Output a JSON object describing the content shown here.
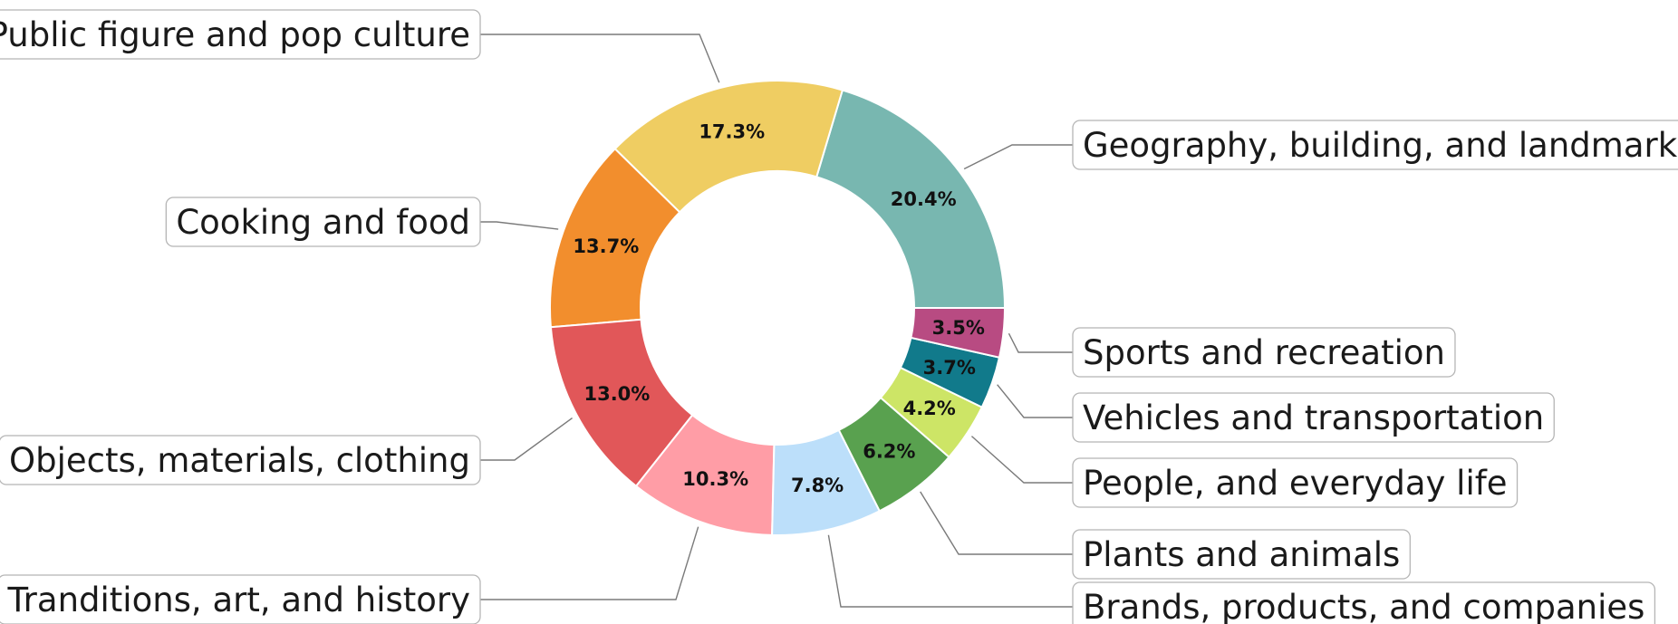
{
  "chart_data": {
    "type": "pie",
    "donut": true,
    "title": "",
    "series": [
      {
        "label": "Geography, building, and landmarks",
        "value": 20.4,
        "display": "20.4%",
        "color": "#78b7b0"
      },
      {
        "label": "Public figure and pop culture",
        "value": 17.3,
        "display": "17.3%",
        "color": "#efcd62"
      },
      {
        "label": "Cooking and food",
        "value": 13.7,
        "display": "13.7%",
        "color": "#f28e2d"
      },
      {
        "label": "Objects, materials, clothing",
        "value": 13.0,
        "display": "13.0%",
        "color": "#e15759"
      },
      {
        "label": "Tranditions, art, and history",
        "value": 10.3,
        "display": "10.3%",
        "color": "#ff9da6"
      },
      {
        "label": "Brands, products, and companies",
        "value": 7.8,
        "display": "7.8%",
        "color": "#bcdffa"
      },
      {
        "label": "Plants and animals",
        "value": 6.2,
        "display": "6.2%",
        "color": "#59a14f"
      },
      {
        "label": "People, and everyday life",
        "value": 4.2,
        "display": "4.2%",
        "color": "#cde566"
      },
      {
        "label": "Vehicles and transportation",
        "value": 3.7,
        "display": "3.7%",
        "color": "#117a8b"
      },
      {
        "label": "Sports and recreation",
        "value": 3.5,
        "display": "3.5%",
        "color": "#b84b82"
      }
    ]
  }
}
